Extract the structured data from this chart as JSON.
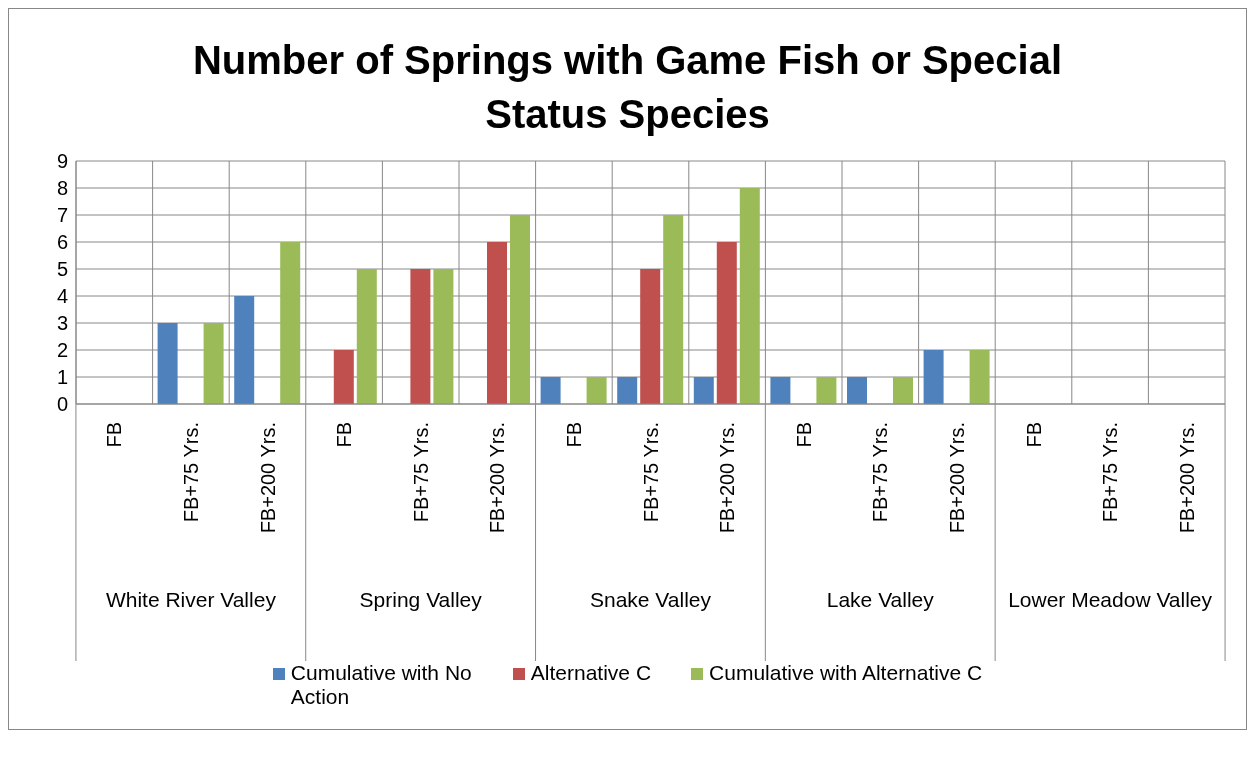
{
  "chart_data": {
    "type": "bar",
    "title": "Number of Springs with Game Fish or Special Status Species",
    "categories": [
      "FB",
      "FB+75 Yrs.",
      "FB+200 Yrs.",
      "FB",
      "FB+75 Yrs.",
      "FB+200 Yrs.",
      "FB",
      "FB+75 Yrs.",
      "FB+200 Yrs.",
      "FB",
      "FB+75 Yrs.",
      "FB+200 Yrs.",
      "FB",
      "FB+75 Yrs.",
      "FB+200 Yrs."
    ],
    "annotations": [
      "White River Valley",
      "Spring Valley",
      "Snake Valley",
      "Lake Valley",
      "Lower Meadow Valley"
    ],
    "series": [
      {
        "name": "Cumulative with No Action",
        "color": "#4f81bd",
        "values": [
          0,
          3,
          4,
          0,
          0,
          0,
          1,
          1,
          1,
          1,
          1,
          2,
          0,
          0,
          0
        ]
      },
      {
        "name": "Alternative C",
        "color": "#c0504d",
        "values": [
          0,
          0,
          0,
          2,
          5,
          6,
          0,
          5,
          6,
          0,
          0,
          0,
          0,
          0,
          0
        ]
      },
      {
        "name": "Cumulative with Alternative C",
        "color": "#9bbb59",
        "values": [
          0,
          3,
          6,
          5,
          5,
          7,
          1,
          7,
          8,
          1,
          1,
          2,
          0,
          0,
          0
        ]
      }
    ],
    "ylim": [
      0,
      9
    ],
    "yticks": [
      0,
      1,
      2,
      3,
      4,
      5,
      6,
      7,
      8,
      9
    ],
    "grid": true,
    "legend": "bottom"
  }
}
